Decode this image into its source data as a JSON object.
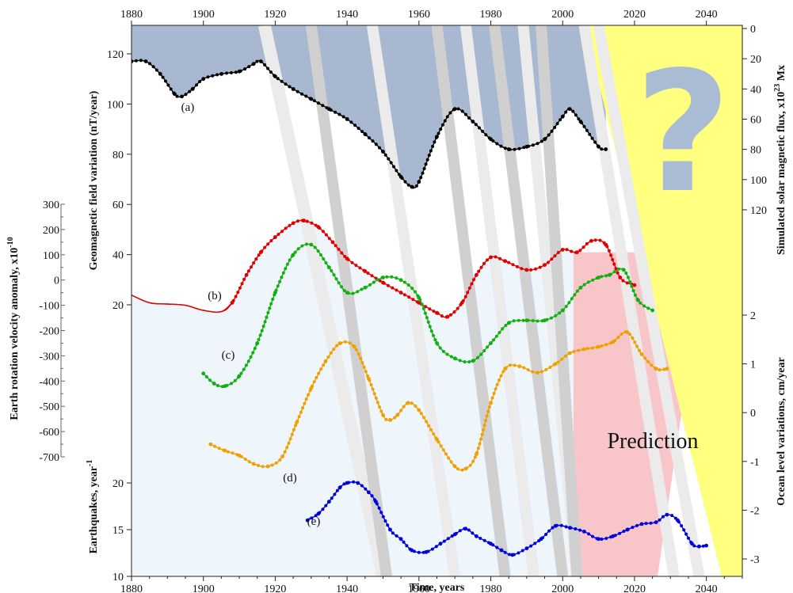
{
  "chart_data": {
    "type": "line",
    "xlabel": "Time, years",
    "xlim": [
      1880,
      2050
    ],
    "x_ticks": [
      1880,
      1900,
      1920,
      1940,
      1960,
      1980,
      2000,
      2020,
      2040
    ],
    "axes": {
      "left_outer": {
        "label": "Earth rotation velocity anomaly, x10",
        "label_sup": "-10",
        "ticks": [
          "300",
          "200",
          "100",
          "0",
          "-100",
          "-200",
          "-300",
          "-400",
          "-500",
          "-600",
          "-700"
        ]
      },
      "left_top": {
        "label": "Geomagnetic field variation (nT/year)",
        "ticks": [
          "120",
          "100",
          "80",
          "60",
          "40",
          "20"
        ]
      },
      "left_bottom": {
        "label": "Earthquakes, year",
        "label_sup": "-1",
        "ticks": [
          "20",
          "15",
          "10"
        ]
      },
      "right_top": {
        "label": "Simulated solar magnetic flux, x10",
        "label_sup": "23",
        "label_suffix": " Mx",
        "ticks": [
          "0",
          "20",
          "40",
          "60",
          "80",
          "100",
          "120"
        ]
      },
      "right_bottom": {
        "label": "Ocean level variations, cm/year",
        "ticks": [
          "2",
          "1",
          "0",
          "-1",
          "-2",
          "-3"
        ]
      }
    },
    "annotations": {
      "prediction": "Prediction",
      "question": "?"
    },
    "series": [
      {
        "name": "(a)",
        "color": "#000000",
        "axis": "Geomagnetic field variation (nT/year)",
        "x": [
          1880,
          1884,
          1888,
          1892,
          1894,
          1897,
          1900,
          1905,
          1910,
          1914,
          1916,
          1920,
          1925,
          1930,
          1935,
          1940,
          1945,
          1950,
          1955,
          1958,
          1960,
          1965,
          1970,
          1975,
          1980,
          1985,
          1990,
          1995,
          2000,
          2002,
          2005,
          2010,
          2012
        ],
        "y": [
          117,
          117,
          112,
          104,
          103,
          106,
          110,
          112,
          113,
          116,
          117,
          111,
          106,
          102,
          98,
          94,
          88,
          81,
          71,
          67,
          69,
          87,
          98,
          93,
          86,
          82,
          83,
          86,
          95,
          98,
          93,
          83,
          82
        ]
      },
      {
        "name": "(b)",
        "color": "#e00000",
        "axis": "Earth rotation velocity anomaly, x10-10",
        "x": [
          1880,
          1885,
          1890,
          1895,
          1900,
          1905,
          1908,
          1912,
          1916,
          1920,
          1925,
          1928,
          1932,
          1936,
          1940,
          1945,
          1950,
          1955,
          1960,
          1965,
          1968,
          1972,
          1976,
          1980,
          1984,
          1990,
          1995,
          2000,
          2004,
          2008,
          2012,
          2016,
          2020
        ],
        "y": [
          -60,
          -90,
          -95,
          -100,
          -120,
          -125,
          -90,
          20,
          110,
          170,
          225,
          235,
          210,
          150,
          85,
          35,
          -10,
          -50,
          -90,
          -130,
          -145,
          -90,
          20,
          90,
          75,
          40,
          60,
          120,
          110,
          155,
          140,
          10,
          -20
        ]
      },
      {
        "name": "(c)",
        "color": "#10b010",
        "axis": "Earth rotation velocity anomaly, x10-10",
        "x": [
          1900,
          1903,
          1906,
          1910,
          1915,
          1920,
          1925,
          1930,
          1935,
          1940,
          1945,
          1950,
          1955,
          1960,
          1965,
          1970,
          1975,
          1980,
          1985,
          1990,
          1995,
          2000,
          2005,
          2010,
          2013,
          2017,
          2021,
          2025
        ],
        "y": [
          -370,
          -410,
          -420,
          -380,
          -250,
          -50,
          100,
          140,
          50,
          -50,
          -30,
          10,
          0,
          -70,
          -250,
          -310,
          -320,
          -250,
          -170,
          -160,
          -160,
          -120,
          -30,
          10,
          20,
          40,
          -80,
          -120
        ]
      },
      {
        "name": "(d)",
        "color": "#f0a000",
        "axis": "Ocean level variations, cm/year",
        "x": [
          1902,
          1906,
          1910,
          1914,
          1918,
          1922,
          1926,
          1930,
          1934,
          1938,
          1942,
          1946,
          1950,
          1952,
          1954,
          1957,
          1960,
          1965,
          1970,
          1973,
          1976,
          1980,
          1984,
          1988,
          1993,
          1998,
          2002,
          2006,
          2010,
          2014,
          2018,
          2022,
          2026,
          2029
        ],
        "y": [
          -0.65,
          -0.78,
          -0.88,
          -1.05,
          -1.1,
          -0.9,
          -0.2,
          0.5,
          1.05,
          1.42,
          1.35,
          0.7,
          -0.05,
          -0.15,
          -0.05,
          0.2,
          0.05,
          -0.55,
          -1.1,
          -1.15,
          -0.85,
          0.2,
          0.9,
          0.95,
          0.82,
          1.0,
          1.22,
          1.3,
          1.35,
          1.45,
          1.65,
          1.2,
          0.9,
          0.9
        ]
      },
      {
        "name": "(e)",
        "color": "#0000e0",
        "axis": "Earthquakes, year-1",
        "x": [
          1929,
          1932,
          1935,
          1938,
          1940,
          1943,
          1946,
          1948,
          1952,
          1955,
          1958,
          1962,
          1966,
          1970,
          1973,
          1976,
          1980,
          1983,
          1986,
          1990,
          1994,
          1998,
          2002,
          2006,
          2010,
          2014,
          2018,
          2022,
          2026,
          2029,
          2032,
          2036,
          2038,
          2040
        ],
        "y": [
          16,
          16.7,
          18,
          19.5,
          20,
          20,
          19,
          18,
          15,
          14,
          12.8,
          12.6,
          13.5,
          14.5,
          15.1,
          14.3,
          13.5,
          12.8,
          12.3,
          13,
          14,
          15.4,
          15.2,
          14.8,
          14,
          14.3,
          15,
          15.6,
          15.8,
          16.6,
          16,
          13.5,
          13.2,
          13.3
        ]
      }
    ]
  }
}
